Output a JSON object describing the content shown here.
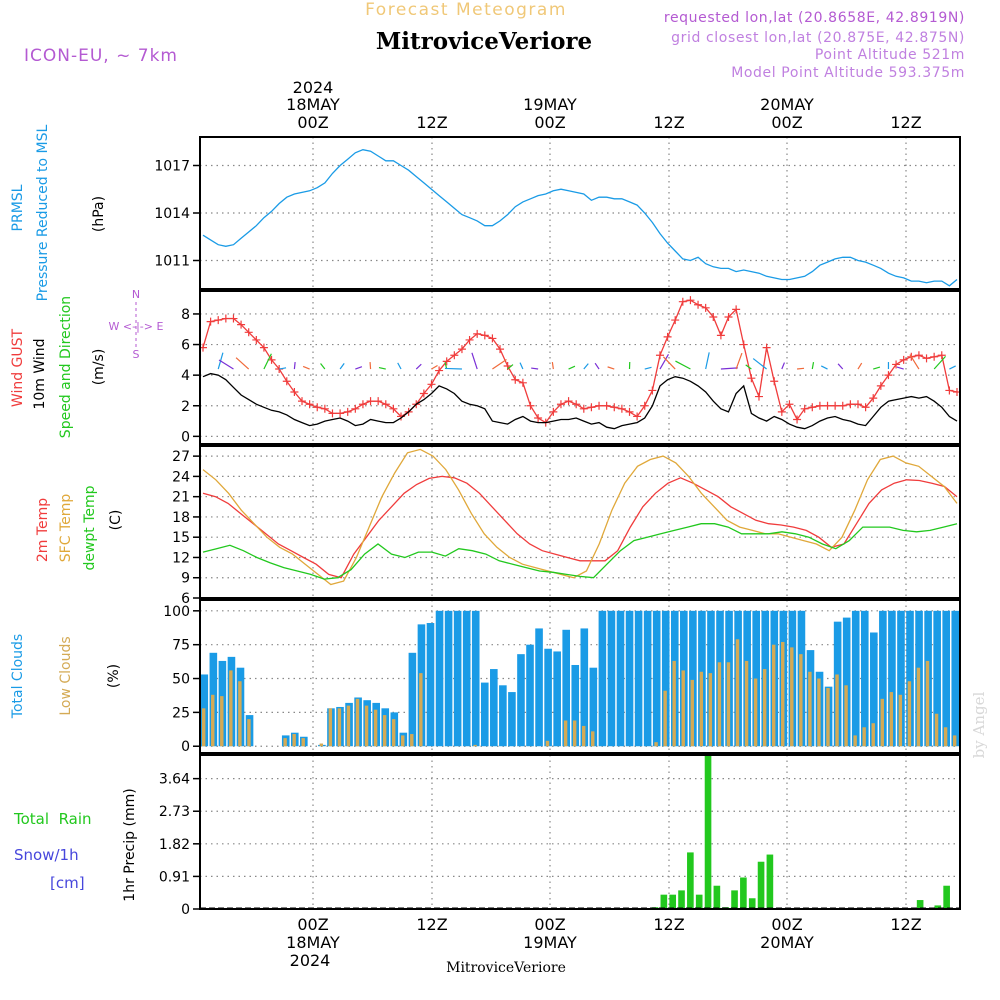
{
  "colors": {
    "pressure": "#1a9be6",
    "gust": "#f03c3c",
    "wind": "#000000",
    "sfc_temp": "#e0a83a",
    "dewpt": "#22c81e",
    "total_clouds": "#1a9be6",
    "low_clouds": "#d4aa55",
    "rain": "#22c81e",
    "snow": "#4646dc",
    "header_purple": "#b45ad2",
    "model_purple": "#c080e0",
    "title_orange": "#f0c878"
  },
  "header": {
    "subtitle": "Forecast Meteogram",
    "title": "MitroviceVeriore",
    "model": "ICON-EU, ~ 7km",
    "requested": "requested lon,lat (20.8658E, 42.8919N)",
    "closest": "grid closest lon,lat (20.875E, 42.875N)",
    "point_alt": "Point Altitude 521m",
    "model_alt": "Model Point Altitude 593.375m",
    "watermark": "by Angel",
    "footer": "MitroviceVeriore"
  },
  "time_axis": {
    "top_year": "2024",
    "top_dates": [
      "18MAY",
      "19MAY",
      "20MAY"
    ],
    "top_hours": [
      "00Z",
      "12Z",
      "00Z",
      "12Z",
      "00Z",
      "12Z"
    ],
    "bottom_hours": [
      "00Z",
      "12Z",
      "00Z",
      "12Z",
      "00Z",
      "12Z"
    ],
    "bottom_dates": [
      "18MAY",
      "19MAY",
      "20MAY"
    ],
    "bottom_year": "2024"
  },
  "labels": {
    "pressure": [
      "PRMSL",
      "Pressure Reduced to MSL",
      "(hPa)"
    ],
    "wind": [
      "Wind GUST",
      "10m Wind",
      "Speed and Direction",
      "(m/s)"
    ],
    "compass": [
      "N",
      "W <-|-> E",
      "S"
    ],
    "temp": [
      "2m Temp",
      "SFC Temp",
      "dewpt Temp",
      "(C)"
    ],
    "clouds": [
      "Total Clouds",
      "Low Clouds",
      "(%)"
    ],
    "precip": [
      "Total  Rain",
      "Snow/1h",
      "[cm]",
      "1hr Precip (mm)"
    ]
  },
  "chart_data": [
    {
      "type": "line",
      "name": "pressure",
      "x_hours_from_18MAY00Z": [
        -12,
        66
      ],
      "ylabel": "(hPa)",
      "yticks": [
        1011,
        1014,
        1017
      ],
      "ylim": [
        1009.2,
        1018.8
      ],
      "series": [
        {
          "name": "PRMSL",
          "values": [
            1012.6,
            1012.3,
            1012.0,
            1011.9,
            1012.0,
            1012.4,
            1012.8,
            1013.2,
            1013.7,
            1014.1,
            1014.6,
            1015.0,
            1015.2,
            1015.3,
            1015.4,
            1015.6,
            1015.9,
            1016.5,
            1017.0,
            1017.4,
            1017.8,
            1018.0,
            1017.9,
            1017.6,
            1017.3,
            1017.3,
            1017.0,
            1016.7,
            1016.3,
            1015.9,
            1015.5,
            1015.1,
            1014.7,
            1014.3,
            1013.9,
            1013.7,
            1013.5,
            1013.2,
            1013.2,
            1013.5,
            1013.9,
            1014.4,
            1014.7,
            1014.9,
            1015.1,
            1015.2,
            1015.4,
            1015.5,
            1015.4,
            1015.3,
            1015.2,
            1014.8,
            1015.0,
            1015.0,
            1014.9,
            1014.9,
            1014.7,
            1014.5,
            1014.0,
            1013.4,
            1012.7,
            1012.1,
            1011.6,
            1011.1,
            1011.0,
            1011.2,
            1010.8,
            1010.6,
            1010.5,
            1010.5,
            1010.3,
            1010.4,
            1010.3,
            1010.2,
            1010.0,
            1009.9,
            1009.8,
            1009.8,
            1009.9,
            1010.0,
            1010.3,
            1010.7,
            1010.9,
            1011.1,
            1011.2,
            1011.2,
            1011.0,
            1010.9,
            1010.7,
            1010.5,
            1010.2,
            1010.0,
            1009.9,
            1009.7,
            1009.7,
            1009.6,
            1009.7,
            1009.7,
            1009.4,
            1009.8
          ]
        }
      ]
    },
    {
      "type": "line",
      "name": "wind",
      "x_hours_from_18MAY00Z": [
        -12,
        66
      ],
      "ylabel": "(m/s)",
      "yticks": [
        0,
        2,
        4,
        6,
        8
      ],
      "ylim": [
        -0.5,
        9.5
      ],
      "series": [
        {
          "name": "Wind GUST",
          "values": [
            5.8,
            7.5,
            7.6,
            7.7,
            7.7,
            7.3,
            6.8,
            6.3,
            5.8,
            5.0,
            4.4,
            3.6,
            2.9,
            2.3,
            2.1,
            1.9,
            1.8,
            1.5,
            1.5,
            1.6,
            1.8,
            2.1,
            2.3,
            2.3,
            2.1,
            1.8,
            1.3,
            1.6,
            2.1,
            2.8,
            3.4,
            4.3,
            4.9,
            5.3,
            5.7,
            6.3,
            6.7,
            6.6,
            6.4,
            5.7,
            4.6,
            3.7,
            3.5,
            2.0,
            1.2,
            0.9,
            1.6,
            2.1,
            2.3,
            2.1,
            1.8,
            1.9,
            2.0,
            2.0,
            1.9,
            1.8,
            1.6,
            1.3,
            2.0,
            3.0,
            5.3,
            6.5,
            7.6,
            8.8,
            8.9,
            8.6,
            8.4,
            7.8,
            6.6,
            7.8,
            8.3,
            6.0,
            3.8,
            2.6,
            5.8,
            3.6,
            1.6,
            2.1,
            1.1,
            1.8,
            1.9,
            2.0,
            2.0,
            2.0,
            2.0,
            2.1,
            2.1,
            1.9,
            2.5,
            3.3,
            4.0,
            4.7,
            5.0,
            5.2,
            5.3,
            5.1,
            5.2,
            5.3,
            3.0,
            2.9
          ]
        },
        {
          "name": "10m Wind",
          "values": [
            3.9,
            4.1,
            4.0,
            3.7,
            3.2,
            2.7,
            2.4,
            2.1,
            1.9,
            1.7,
            1.6,
            1.4,
            1.1,
            0.9,
            0.7,
            0.8,
            1.0,
            1.1,
            1.2,
            1.0,
            0.7,
            0.8,
            1.1,
            1.0,
            0.9,
            0.9,
            1.2,
            1.6,
            2.1,
            2.4,
            2.8,
            3.3,
            3.1,
            2.8,
            2.3,
            2.1,
            2.0,
            1.8,
            1.0,
            0.9,
            0.8,
            1.1,
            1.3,
            1.0,
            0.9,
            0.9,
            1.0,
            1.1,
            1.1,
            1.2,
            1.0,
            0.8,
            0.9,
            0.6,
            0.5,
            0.7,
            0.8,
            0.9,
            1.2,
            2.0,
            3.3,
            3.7,
            3.9,
            3.8,
            3.6,
            3.3,
            2.9,
            2.3,
            1.8,
            1.6,
            2.8,
            3.3,
            1.5,
            1.2,
            1.0,
            1.3,
            1.1,
            0.8,
            0.6,
            0.5,
            0.7,
            1.0,
            1.2,
            1.3,
            1.1,
            1.0,
            0.8,
            0.7,
            1.3,
            1.9,
            2.3,
            2.4,
            2.5,
            2.6,
            2.5,
            2.6,
            2.3,
            1.9,
            1.3,
            1.0
          ]
        }
      ]
    },
    {
      "type": "line",
      "name": "temperature",
      "x_hours_from_18MAY00Z": [
        -12,
        66
      ],
      "ylabel": "(C)",
      "yticks": [
        6,
        9,
        12,
        15,
        18,
        21,
        24,
        27
      ],
      "ylim": [
        6,
        28.5
      ],
      "series": [
        {
          "name": "2m Temp",
          "values": [
            21.5,
            21.0,
            20.0,
            18.5,
            17.0,
            15.5,
            14.0,
            13.0,
            12.0,
            11.0,
            9.5,
            9.0,
            12.5,
            15.0,
            17.5,
            19.5,
            21.5,
            22.8,
            23.7,
            24.0,
            23.8,
            23.0,
            21.5,
            19.5,
            17.5,
            15.5,
            14.0,
            13.0,
            12.5,
            12.0,
            11.5,
            11.5,
            11.5,
            13.0,
            16.5,
            19.5,
            21.5,
            23.0,
            23.8,
            23.0,
            22.0,
            21.0,
            19.5,
            18.5,
            17.5,
            17.0,
            16.8,
            16.5,
            16.0,
            15.0,
            13.5,
            14.0,
            17.0,
            20.0,
            22.0,
            23.0,
            23.5,
            23.4,
            23.0,
            22.5,
            21.0
          ]
        },
        {
          "name": "SFC Temp",
          "values": [
            25.0,
            23.5,
            21.5,
            19.0,
            17.0,
            15.0,
            13.5,
            12.5,
            11.0,
            9.5,
            8.0,
            8.5,
            12.0,
            16.5,
            21.0,
            24.5,
            27.5,
            28.0,
            27.0,
            25.0,
            22.0,
            18.5,
            15.5,
            13.5,
            12.0,
            11.0,
            10.5,
            10.0,
            9.5,
            9.0,
            10.0,
            14.0,
            19.0,
            23.0,
            25.5,
            26.5,
            27.0,
            26.0,
            24.0,
            21.5,
            19.5,
            17.5,
            16.5,
            16.0,
            15.5,
            15.5,
            15.0,
            14.5,
            14.0,
            13.0,
            15.0,
            19.0,
            23.5,
            26.5,
            27.0,
            26.0,
            25.5,
            24.0,
            22.5,
            20.0
          ]
        },
        {
          "name": "dewpt Temp",
          "values": [
            12.8,
            13.3,
            13.8,
            13.0,
            12.0,
            11.2,
            10.5,
            10.0,
            9.5,
            8.8,
            9.0,
            10.2,
            12.5,
            14.0,
            12.5,
            12.0,
            12.8,
            12.8,
            12.2,
            13.3,
            13.0,
            12.5,
            11.5,
            11.0,
            10.5,
            10.0,
            9.8,
            9.5,
            9.2,
            9.0,
            11.0,
            13.0,
            14.5,
            15.0,
            15.5,
            16.0,
            16.5,
            17.0,
            17.0,
            16.5,
            15.5,
            15.5,
            15.5,
            15.8,
            15.5,
            15.0,
            14.0,
            13.3,
            14.5,
            16.5,
            16.5,
            16.5,
            16.0,
            15.8,
            16.0,
            16.5,
            17.0
          ]
        }
      ]
    },
    {
      "type": "bar",
      "name": "clouds",
      "x_hours_from_18MAY00Z": [
        -12,
        66
      ],
      "ylabel": "(%)",
      "yticks": [
        0,
        25,
        50,
        75,
        100
      ],
      "ylim": [
        -5,
        108
      ],
      "series": [
        {
          "name": "Total Clouds",
          "values": [
            53,
            69,
            63,
            66,
            58,
            23,
            0,
            0,
            0,
            8,
            10,
            7,
            0,
            1,
            28,
            29,
            32,
            36,
            34,
            32,
            28,
            25,
            10,
            69,
            90,
            91,
            100,
            100,
            100,
            100,
            100,
            47,
            57,
            45,
            40,
            68,
            75,
            87,
            72,
            70,
            86,
            60,
            87,
            58,
            100,
            100,
            100,
            100,
            100,
            100,
            100,
            100,
            100,
            100,
            100,
            100,
            100,
            100,
            100,
            100,
            100,
            100,
            100,
            100,
            100,
            100,
            100,
            71,
            55,
            44,
            92,
            95,
            100,
            100,
            84,
            100,
            100,
            100,
            100,
            100,
            100,
            100,
            100,
            100
          ]
        },
        {
          "name": "Low Clouds",
          "values": [
            28,
            38,
            37,
            56,
            48,
            20,
            0,
            0,
            0,
            6,
            9,
            6,
            0,
            2,
            28,
            28,
            30,
            35,
            30,
            27,
            23,
            20,
            8,
            9,
            54,
            0,
            0,
            0,
            0,
            0,
            1,
            0,
            0,
            0,
            0,
            0,
            0,
            0,
            4,
            0,
            19,
            19,
            15,
            11,
            0,
            0,
            0,
            0,
            0,
            0,
            3,
            41,
            63,
            56,
            49,
            55,
            54,
            62,
            62,
            79,
            63,
            50,
            57,
            75,
            77,
            73,
            68,
            55,
            50,
            43,
            53,
            45,
            8,
            14,
            17,
            35,
            40,
            38,
            48,
            58,
            63,
            24,
            14,
            8
          ]
        }
      ]
    },
    {
      "type": "bar",
      "name": "precipitation",
      "x_hours_from_18MAY00Z": [
        -12,
        66
      ],
      "ylabel": "1hr Precip (mm)",
      "yticks": [
        0,
        0.91,
        1.82,
        2.73,
        3.64
      ],
      "ylim": [
        0,
        4.3
      ],
      "series": [
        {
          "name": "Total Rain",
          "values": [
            0,
            0,
            0,
            0,
            0,
            0,
            0,
            0,
            0,
            0,
            0,
            0,
            0,
            0,
            0,
            0,
            0,
            0,
            0,
            0,
            0,
            0,
            0,
            0,
            0,
            0,
            0,
            0,
            0,
            0,
            0,
            0,
            0,
            0,
            0,
            0,
            0,
            0,
            0,
            0,
            0,
            0,
            0,
            0,
            0,
            0,
            0,
            0,
            0,
            0,
            0,
            0.05,
            0.4,
            0.4,
            0.52,
            1.58,
            0.4,
            4.32,
            0.65,
            0.05,
            0.52,
            0.88,
            0.3,
            1.32,
            1.52,
            0,
            0,
            0,
            0,
            0,
            0,
            0,
            0,
            0,
            0,
            0,
            0,
            0,
            0,
            0,
            0,
            0.25,
            0,
            0.1,
            0.65,
            0
          ]
        }
      ]
    }
  ]
}
